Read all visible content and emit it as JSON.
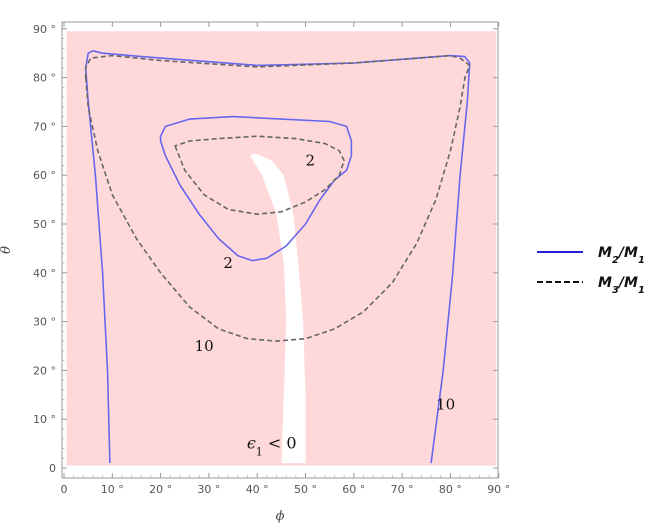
{
  "chart_data": {
    "type": "contour",
    "xlabel": "ϕ",
    "ylabel": "θ",
    "xlim": [
      0,
      90
    ],
    "ylim": [
      0,
      90
    ],
    "x_ticks": [
      0,
      10,
      20,
      30,
      40,
      50,
      60,
      70,
      80,
      90
    ],
    "y_ticks": [
      0,
      10,
      20,
      30,
      40,
      50,
      60,
      70,
      80,
      90
    ],
    "x_tick_labels": [
      "0",
      "10 °",
      "20 °",
      "30 °",
      "40 °",
      "50 °",
      "60 °",
      "70 °",
      "80 °",
      "90 °"
    ],
    "y_tick_labels": [
      "0",
      "10 °",
      "20 °",
      "30 °",
      "40 °",
      "50 °",
      "60 °",
      "70 °",
      "80 °",
      "90 °"
    ],
    "grid": false,
    "colors": {
      "region": "#ffd9da",
      "m2": "#6666ee",
      "m3": "#666666",
      "legend_m2": "#2222dd",
      "legend_m3": "#111111"
    },
    "region": {
      "label_base": "ϵ",
      "label_sub": "1",
      "label_rel": " < 0",
      "label_at": [
        43,
        4
      ],
      "bounds": [
        [
          0.5,
          0.5
        ],
        [
          89.5,
          0.5
        ],
        [
          89.5,
          89.5
        ],
        [
          0.5,
          89.5
        ]
      ],
      "white_gap": [
        [
          45,
          1
        ],
        [
          45.5,
          15
        ],
        [
          46,
          30
        ],
        [
          45.5,
          42
        ],
        [
          44,
          52
        ],
        [
          41,
          60
        ],
        [
          38.5,
          64
        ],
        [
          39.5,
          64.5
        ],
        [
          43,
          63
        ],
        [
          45.5,
          60
        ],
        [
          47.5,
          52
        ],
        [
          48.5,
          42
        ],
        [
          49.5,
          30
        ],
        [
          50,
          15
        ],
        [
          50,
          1
        ]
      ]
    },
    "series": [
      {
        "name": "M2/M1",
        "name_base": "M",
        "name_sub": "2",
        "name_sep": "/",
        "name_base2": "M",
        "name_sub2": "1",
        "style": "solid",
        "contours": [
          {
            "level_label": "10",
            "label_at": [
              79,
              12
            ],
            "points": [
              [
                9.5,
                1
              ],
              [
                9,
                20
              ],
              [
                8,
                40
              ],
              [
                6.5,
                60
              ],
              [
                5,
                75
              ],
              [
                4.5,
                82
              ],
              [
                5,
                85
              ],
              [
                6,
                85.5
              ],
              [
                8,
                85
              ],
              [
                20,
                84
              ],
              [
                40,
                82.5
              ],
              [
                60,
                83
              ],
              [
                80,
                84.5
              ],
              [
                83,
                84.3
              ],
              [
                84,
                83
              ],
              [
                83.5,
                75
              ],
              [
                82,
                60
              ],
              [
                80.5,
                40
              ],
              [
                78.5,
                20
              ],
              [
                76,
                1
              ]
            ]
          },
          {
            "level_label": "2",
            "label_at": [
              34,
              41
            ],
            "points": [
              [
                20,
                67
              ],
              [
                21,
                64
              ],
              [
                24,
                58
              ],
              [
                28,
                52
              ],
              [
                32,
                47
              ],
              [
                36,
                43.5
              ],
              [
                39,
                42.5
              ],
              [
                42,
                43
              ],
              [
                46,
                45.5
              ],
              [
                50,
                50
              ],
              [
                53,
                55
              ],
              [
                56,
                59
              ],
              [
                58.5,
                61
              ],
              [
                59.5,
                64
              ],
              [
                59.5,
                67
              ],
              [
                58.5,
                70
              ],
              [
                55,
                71
              ],
              [
                45,
                71.5
              ],
              [
                35,
                72
              ],
              [
                26,
                71.5
              ],
              [
                21,
                70
              ],
              [
                20,
                68
              ],
              [
                20,
                67
              ]
            ]
          }
        ]
      },
      {
        "name": "M3/M1",
        "name_base": "M",
        "name_sub": "3",
        "name_sep": "/",
        "name_base2": "M",
        "name_sub2": "1",
        "style": "dashed",
        "contours": [
          {
            "level_label": "10",
            "label_at": [
              29,
              24
            ],
            "points": [
              [
                4.5,
                80
              ],
              [
                5,
                74
              ],
              [
                7,
                65
              ],
              [
                10,
                56
              ],
              [
                15,
                47
              ],
              [
                20,
                40
              ],
              [
                26,
                33
              ],
              [
                32,
                28.5
              ],
              [
                38,
                26.5
              ],
              [
                44,
                26
              ],
              [
                50,
                26.5
              ],
              [
                56,
                28.5
              ],
              [
                62,
                32
              ],
              [
                68,
                38
              ],
              [
                73,
                46
              ],
              [
                77,
                55
              ],
              [
                80,
                65
              ],
              [
                82,
                74
              ],
              [
                83,
                80
              ],
              [
                84,
                82.5
              ],
              [
                82,
                84
              ],
              [
                80,
                84.5
              ],
              [
                60,
                83
              ],
              [
                40,
                82.2
              ],
              [
                20,
                83.5
              ],
              [
                10,
                84.5
              ],
              [
                5.5,
                84
              ],
              [
                4.5,
                82
              ],
              [
                4.5,
                80
              ]
            ]
          },
          {
            "level_label": "2",
            "label_at": [
              51,
              62
            ],
            "points": [
              [
                23,
                66
              ],
              [
                25,
                61
              ],
              [
                29,
                56
              ],
              [
                34,
                53
              ],
              [
                40,
                52
              ],
              [
                45,
                52.5
              ],
              [
                50,
                54.5
              ],
              [
                54,
                57
              ],
              [
                57,
                60
              ],
              [
                58,
                63
              ],
              [
                57,
                65
              ],
              [
                54,
                66.5
              ],
              [
                48,
                67.5
              ],
              [
                40,
                68
              ],
              [
                32,
                67.5
              ],
              [
                26,
                67
              ],
              [
                23,
                66
              ]
            ]
          }
        ]
      }
    ],
    "legend": {
      "placement": "right"
    }
  }
}
